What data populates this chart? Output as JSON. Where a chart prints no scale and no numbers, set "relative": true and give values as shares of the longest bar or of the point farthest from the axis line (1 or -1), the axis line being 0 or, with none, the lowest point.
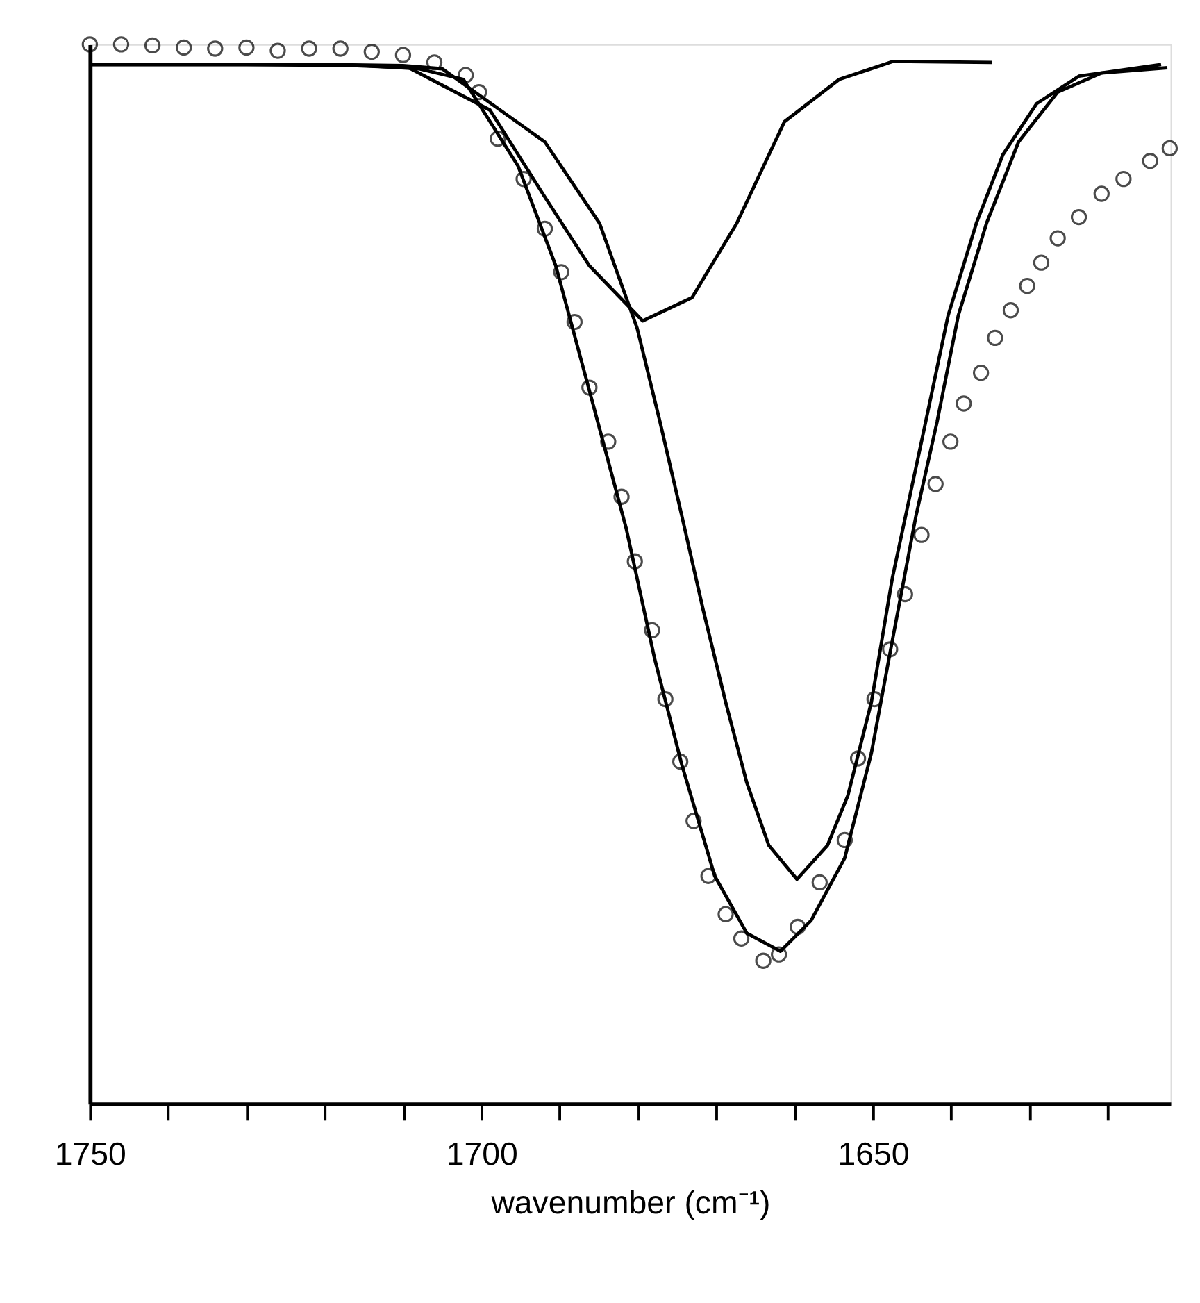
{
  "chart_data": {
    "type": "line",
    "xlabel": "wavenumber (cm⁻¹)",
    "relative": true,
    "xlim": [
      1750,
      1612
    ],
    "xticks": [
      1750,
      {
        "value": 1740,
        "label": null
      },
      {
        "value": 1730,
        "label": null
      },
      {
        "value": 1720,
        "label": null
      },
      {
        "value": 1710,
        "label": null
      },
      1700,
      {
        "value": 1690,
        "label": null
      },
      {
        "value": 1680,
        "label": null
      },
      {
        "value": 1670,
        "label": null
      },
      {
        "value": 1660,
        "label": null
      },
      1650,
      {
        "value": 1640,
        "label": null
      },
      {
        "value": 1630,
        "label": null
      },
      {
        "value": 1620,
        "label": null
      }
    ],
    "grid": false,
    "series": [
      {
        "type": "scatter",
        "marker": "circle",
        "color": "#000000",
        "x": [
          1750,
          1746,
          1742,
          1738,
          1734,
          1730,
          1726,
          1722,
          1718,
          1714,
          1710,
          1706,
          1702,
          1700.3,
          1697.9,
          1694.6,
          1691.9,
          1689.8,
          1688.1,
          1686.2,
          1683.8,
          1682.1,
          1680.4,
          1678.2,
          1676.5,
          1674.6,
          1672.9,
          1671.0,
          1668.8,
          1666.8,
          1664.0,
          1662.0,
          1659.6,
          1656.8,
          1653.6,
          1651.9,
          1649.8,
          1647.8,
          1645.9,
          1643.8,
          1642.0,
          1640.1,
          1638.4,
          1636.2,
          1634.4,
          1632.4,
          1630.3,
          1628.5,
          1626.4,
          1623.7,
          1620.8,
          1618.0,
          1614.6,
          1612.1
        ],
        "values": [
          1.0,
          1.0,
          0.999,
          0.997,
          0.996,
          0.997,
          0.994,
          0.996,
          0.996,
          0.993,
          0.99,
          0.983,
          0.971,
          0.955,
          0.911,
          0.873,
          0.826,
          0.785,
          0.738,
          0.676,
          0.625,
          0.573,
          0.512,
          0.447,
          0.382,
          0.323,
          0.267,
          0.215,
          0.179,
          0.156,
          0.135,
          0.141,
          0.167,
          0.209,
          0.249,
          0.326,
          0.382,
          0.429,
          0.481,
          0.537,
          0.585,
          0.625,
          0.661,
          0.69,
          0.723,
          0.749,
          0.772,
          0.794,
          0.817,
          0.837,
          0.859,
          0.873,
          0.89,
          0.902
        ]
      },
      {
        "marker": "none",
        "line_style": "solid",
        "color": "#000000",
        "x": [
          1750,
          1730,
          1715,
          1708,
          1702.3,
          1695.3,
          1690.5,
          1686.2,
          1681.5,
          1677.9,
          1674.4,
          1670.2,
          1666.1,
          1661.8,
          1657.9,
          1653.6,
          1650.2,
          1647.5,
          1644.5,
          1641.8,
          1639.1,
          1635.5,
          1631.4,
          1626.4,
          1620.8,
          1612.4
        ],
        "values": [
          0.981,
          0.981,
          0.98,
          0.977,
          0.967,
          0.885,
          0.791,
          0.673,
          0.543,
          0.421,
          0.32,
          0.215,
          0.161,
          0.144,
          0.173,
          0.232,
          0.331,
          0.438,
          0.555,
          0.644,
          0.744,
          0.831,
          0.908,
          0.955,
          0.973,
          0.978
        ]
      },
      {
        "marker": "none",
        "line_style": "solid",
        "color": "#000000",
        "x": [
          1750,
          1720,
          1710,
          1705,
          1691.9,
          1684.9,
          1680.1,
          1677.2,
          1674.4,
          1671.7,
          1668.8,
          1666.1,
          1663.3,
          1659.7,
          1655.8,
          1653.2,
          1650.2,
          1647.5,
          1643.8,
          1640.4,
          1636.8,
          1633.4,
          1629.1,
          1623.7,
          1613.2
        ],
        "values": [
          0.981,
          0.981,
          0.98,
          0.977,
          0.908,
          0.831,
          0.732,
          0.644,
          0.555,
          0.467,
          0.379,
          0.303,
          0.244,
          0.212,
          0.244,
          0.291,
          0.379,
          0.497,
          0.625,
          0.744,
          0.831,
          0.896,
          0.944,
          0.97,
          0.981
        ]
      },
      {
        "marker": "none",
        "line_style": "solid",
        "color": "#000000",
        "x": [
          1750,
          1720,
          1709.3,
          1698.9,
          1691.9,
          1686.2,
          1679.4,
          1673.1,
          1667.4,
          1661.3,
          1654.3,
          1647.4,
          1634.8
        ],
        "values": [
          0.981,
          0.981,
          0.978,
          0.938,
          0.856,
          0.791,
          0.739,
          0.761,
          0.831,
          0.927,
          0.967,
          0.984,
          0.983
        ]
      }
    ]
  }
}
